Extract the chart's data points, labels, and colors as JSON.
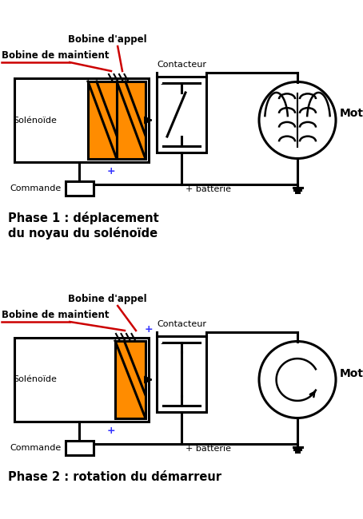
{
  "bg_color": "#ffffff",
  "orange": "#FF8C00",
  "black": "#000000",
  "red": "#CC0000",
  "blue": "#3333FF",
  "phase1_label": "Phase 1 : déplacement\ndu noyau du solénoïde",
  "phase2_label": "Phase 2 : rotation du démarreur",
  "label_solenoide": "Solénoïde",
  "label_commande": "Commande",
  "label_bobine_appel": "Bobine d'appel",
  "label_bobine_maintient": "Bobine de maintient",
  "label_contacteur": "Contacteur",
  "label_moteur": "Moteur",
  "label_batterie": "+ batterie",
  "label_minus": "-",
  "label_plus": "+"
}
